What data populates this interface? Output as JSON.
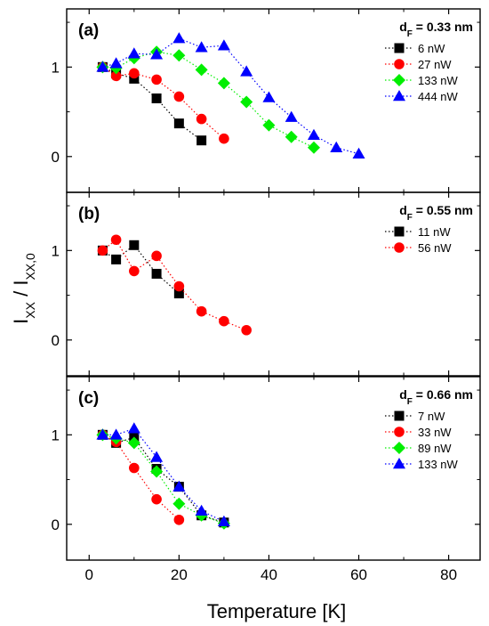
{
  "chart_data": {
    "type": "scatter",
    "xlabel": "Temperature [K]",
    "ylabel": "I_XX / I_XX,0",
    "ylabel_main": "I",
    "ylabel_sub": "XX",
    "ylabel_sep": " / I",
    "ylabel_sub2": "XX,0",
    "xlim": [
      -5,
      87
    ],
    "xticks": [
      0,
      20,
      40,
      60,
      80
    ],
    "ylim": [
      -0.4,
      1.65
    ],
    "yticks": [
      0,
      1
    ],
    "colors": {
      "black": "#000000",
      "red": "#ff0000",
      "green": "#00ee00",
      "blue": "#0000ff"
    },
    "panels": [
      {
        "label": "(a)",
        "d_prefix": "d",
        "d_sub": "F",
        "d_value": " = 0.33 nm",
        "legend_position": "top-right",
        "series": [
          {
            "name": "6 nW",
            "marker": "square",
            "color": "#000000",
            "x": [
              3,
              6,
              10,
              15,
              20,
              25
            ],
            "y": [
              1.0,
              0.93,
              0.87,
              0.65,
              0.37,
              0.18
            ]
          },
          {
            "name": "27 nW",
            "marker": "circle",
            "color": "#ff0000",
            "x": [
              3,
              6,
              10,
              15,
              20,
              25,
              30
            ],
            "y": [
              1.0,
              0.9,
              0.93,
              0.86,
              0.67,
              0.42,
              0.2
            ]
          },
          {
            "name": "133 nW",
            "marker": "diamond",
            "color": "#00ee00",
            "x": [
              3,
              6,
              10,
              15,
              20,
              25,
              30,
              35,
              40,
              45,
              50
            ],
            "y": [
              1.0,
              0.99,
              1.1,
              1.17,
              1.13,
              0.97,
              0.82,
              0.61,
              0.35,
              0.22,
              0.1
            ]
          },
          {
            "name": "444 nW",
            "marker": "triangle",
            "color": "#0000ff",
            "x": [
              3,
              6,
              10,
              15,
              20,
              25,
              30,
              35,
              40,
              45,
              50,
              55,
              60
            ],
            "y": [
              1.0,
              1.04,
              1.15,
              1.14,
              1.32,
              1.22,
              1.24,
              0.95,
              0.66,
              0.44,
              0.24,
              0.1,
              0.03
            ]
          }
        ]
      },
      {
        "label": "(b)",
        "d_prefix": "d",
        "d_sub": "F",
        "d_value": " = 0.55 nm",
        "legend_position": "top-right",
        "series": [
          {
            "name": "11 nW",
            "marker": "square",
            "color": "#000000",
            "x": [
              3,
              6,
              10,
              15,
              20
            ],
            "y": [
              1.0,
              0.9,
              1.06,
              0.74,
              0.52
            ]
          },
          {
            "name": "56 nW",
            "marker": "circle",
            "color": "#ff0000",
            "x": [
              3,
              6,
              10,
              15,
              20,
              25,
              30,
              35
            ],
            "y": [
              1.0,
              1.12,
              0.77,
              0.94,
              0.6,
              0.32,
              0.21,
              0.11
            ]
          }
        ]
      },
      {
        "label": "(c)",
        "d_prefix": "d",
        "d_sub": "F",
        "d_value": " = 0.66 nm",
        "legend_position": "top-right",
        "series": [
          {
            "name": "7 nW",
            "marker": "square",
            "color": "#000000",
            "x": [
              3,
              6,
              10,
              15,
              20,
              25,
              30
            ],
            "y": [
              1.0,
              0.91,
              0.97,
              0.62,
              0.42,
              0.1,
              0.02
            ]
          },
          {
            "name": "33 nW",
            "marker": "circle",
            "color": "#ff0000",
            "x": [
              3,
              6,
              10,
              15,
              20
            ],
            "y": [
              1.0,
              0.92,
              0.63,
              0.28,
              0.05
            ]
          },
          {
            "name": "89 nW",
            "marker": "diamond",
            "color": "#00ee00",
            "x": [
              3,
              6,
              10,
              15,
              20,
              25,
              30
            ],
            "y": [
              1.0,
              0.96,
              0.91,
              0.59,
              0.23,
              0.1,
              0.01
            ]
          },
          {
            "name": "133 nW",
            "marker": "triangle",
            "color": "#0000ff",
            "x": [
              3,
              6,
              10,
              15,
              20,
              25,
              30
            ],
            "y": [
              1.0,
              1.0,
              1.07,
              0.75,
              0.42,
              0.15,
              0.03
            ]
          }
        ]
      }
    ]
  }
}
